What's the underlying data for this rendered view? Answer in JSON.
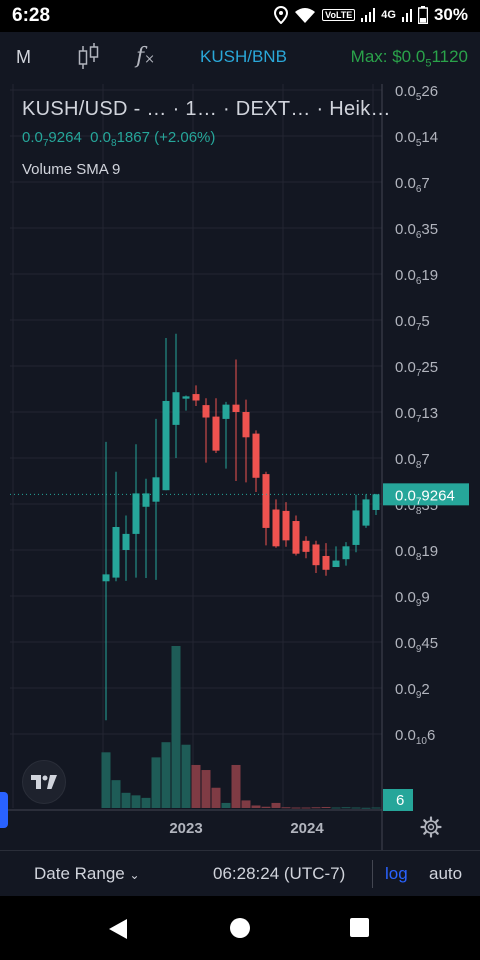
{
  "status_bar": {
    "time": "6:28",
    "network": "4G",
    "volte": "VoLTE",
    "battery": "30%"
  },
  "toolbar": {
    "interval": "M",
    "indicators_glyph": "f",
    "symbol": "KUSH/BNB",
    "max_prefix": "Max: $0.0",
    "max_sub": "5",
    "max_suffix": "1120"
  },
  "legend": {
    "title": "KUSH/USD - … · 1… · DEXT… · Heik…",
    "price_a": "0.0",
    "price_a_sub": "7",
    "price_a_rest": "9264",
    "price_b": "0.0",
    "price_b_sub": "8",
    "price_b_rest": "1867",
    "change": "(+2.06%)",
    "volume_label": "Volume SMA 9"
  },
  "chart_data": {
    "type": "candlestick",
    "style": "heikin-ashi",
    "scale": "log",
    "timeframe": "1M",
    "colors": {
      "up": "#26a69a",
      "down": "#ef5350",
      "grid": "#232632",
      "last_price": "#26a69a"
    },
    "y_ticks": [
      {
        "main": "0.0",
        "sub": "5",
        "rest": "26"
      },
      {
        "main": "0.0",
        "sub": "5",
        "rest": "14"
      },
      {
        "main": "0.0",
        "sub": "6",
        "rest": "7"
      },
      {
        "main": "0.0",
        "sub": "6",
        "rest": "35"
      },
      {
        "main": "0.0",
        "sub": "6",
        "rest": "19"
      },
      {
        "main": "0.0",
        "sub": "7",
        "rest": "5"
      },
      {
        "main": "0.0",
        "sub": "7",
        "rest": "25"
      },
      {
        "main": "0.0",
        "sub": "7",
        "rest": "13"
      },
      {
        "main": "0.0",
        "sub": "8",
        "rest": "7"
      },
      {
        "main": "0.0",
        "sub": "8",
        "rest": "35"
      },
      {
        "main": "0.0",
        "sub": "8",
        "rest": "19"
      },
      {
        "main": "0.0",
        "sub": "9",
        "rest": "9"
      },
      {
        "main": "0.0",
        "sub": "9",
        "rest": "45"
      },
      {
        "main": "0.0",
        "sub": "9",
        "rest": "2"
      },
      {
        "main": "0.0",
        "sub": "10",
        "rest": "6"
      }
    ],
    "last_price_label": {
      "main": "0.0",
      "sub": "7",
      "rest": "9264"
    },
    "volume_label": "6",
    "x_labels": [
      "2023",
      "2024"
    ],
    "candles": [
      {
        "o": 4.32,
        "c": 4.47,
        "h": 7.35,
        "l": 1.3
      },
      {
        "o": 4.4,
        "c": 5.5,
        "h": 6.7,
        "l": 4.32
      },
      {
        "o": 5.0,
        "c": 5.35,
        "h": 5.75,
        "l": 4.33
      },
      {
        "o": 5.35,
        "c": 6.23,
        "h": 7.3,
        "l": 4.4
      },
      {
        "o": 5.94,
        "c": 6.23,
        "h": 6.55,
        "l": 4.39
      },
      {
        "o": 6.05,
        "c": 6.58,
        "h": 7.85,
        "l": 4.35
      },
      {
        "o": 6.3,
        "c": 8.24,
        "h": 9.61,
        "l": 6.3
      },
      {
        "o": 7.72,
        "c": 8.43,
        "h": 9.7,
        "l": 7.0
      },
      {
        "o": 8.29,
        "c": 8.34,
        "h": 8.36,
        "l": 8.03
      },
      {
        "o": 8.39,
        "c": 8.25,
        "h": 8.58,
        "l": 8.13
      },
      {
        "o": 8.15,
        "c": 7.88,
        "h": 8.3,
        "l": 6.9
      },
      {
        "o": 7.9,
        "c": 7.16,
        "h": 8.3,
        "l": 7.11
      },
      {
        "o": 7.85,
        "c": 8.16,
        "h": 8.22,
        "l": 6.77
      },
      {
        "o": 8.16,
        "c": 8.0,
        "h": 9.14,
        "l": 6.5
      },
      {
        "o": 8.0,
        "c": 7.45,
        "h": 8.27,
        "l": 6.47
      },
      {
        "o": 7.53,
        "c": 6.57,
        "h": 7.6,
        "l": 6.26
      },
      {
        "o": 6.65,
        "c": 5.48,
        "h": 6.7,
        "l": 5.1
      },
      {
        "o": 5.88,
        "c": 5.08,
        "h": 6.1,
        "l": 5.05
      },
      {
        "o": 5.85,
        "c": 5.21,
        "h": 6.04,
        "l": 5.07
      },
      {
        "o": 5.63,
        "c": 4.92,
        "h": 5.75,
        "l": 4.88
      },
      {
        "o": 5.2,
        "c": 4.96,
        "h": 5.3,
        "l": 4.82
      },
      {
        "o": 5.12,
        "c": 4.67,
        "h": 5.2,
        "l": 4.5
      },
      {
        "o": 4.87,
        "c": 4.57,
        "h": 5.15,
        "l": 4.44
      },
      {
        "o": 4.63,
        "c": 4.77,
        "h": 5.08,
        "l": 4.7
      },
      {
        "o": 4.8,
        "c": 5.08,
        "h": 5.17,
        "l": 4.66
      },
      {
        "o": 5.11,
        "c": 5.86,
        "h": 6.2,
        "l": 4.95
      },
      {
        "o": 5.53,
        "c": 6.1,
        "h": 6.21,
        "l": 5.48
      },
      {
        "o": 5.87,
        "c": 6.21,
        "h": 6.22,
        "l": 5.76
      }
    ],
    "volume": [
      0.22,
      0.11,
      0.06,
      0.05,
      0.04,
      0.2,
      0.26,
      0.64,
      0.25,
      0.17,
      0.15,
      0.08,
      0.02,
      0.17,
      0.03,
      0.01,
      0.005,
      0.02,
      0.003,
      0.002,
      0.002,
      0.003,
      0.004,
      0.002,
      0.003,
      0.002,
      0.001,
      0.002
    ]
  },
  "bottom_bar": {
    "date_range": "Date Range",
    "time": "06:28:24 (UTC-7)",
    "log": "log",
    "auto": "auto"
  }
}
